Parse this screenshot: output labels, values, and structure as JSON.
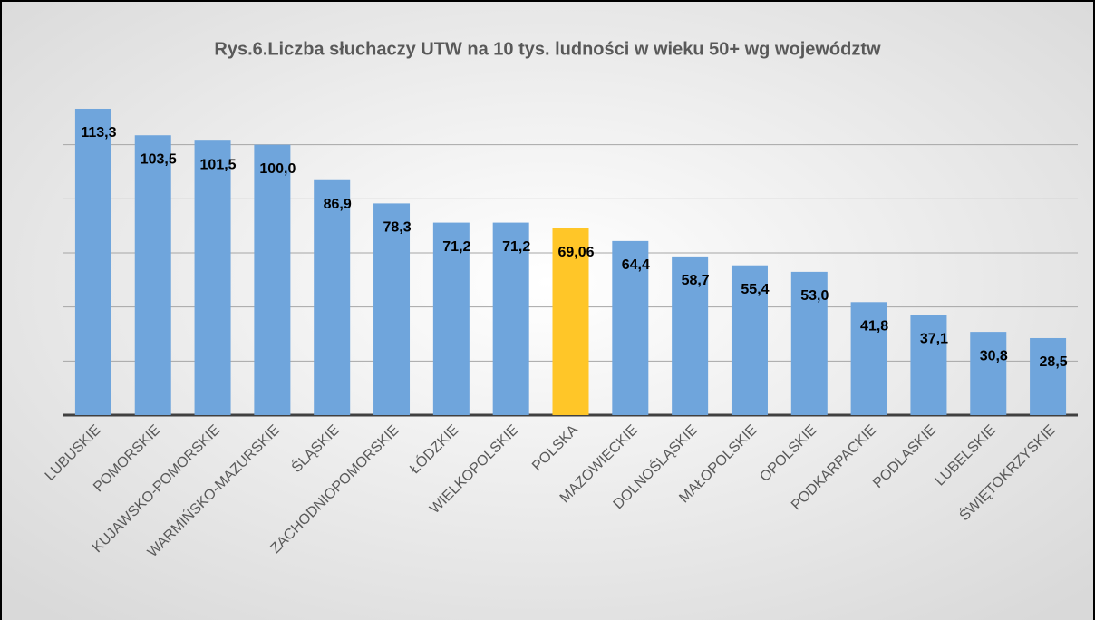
{
  "chart_data": {
    "type": "bar",
    "title": "Rys.6.Liczba słuchaczy UTW na 10 tys. ludności w wieku 50+ wg województw",
    "categories": [
      "LUBUSKIE",
      "POMORSKIE",
      "KUJAWSKO-POMORSKIE",
      "WARMIŃSKO-MAZURSKIE",
      "ŚLĄSKIE",
      "ZACHODNIOPOMORSKIE",
      "ŁÓDZKIE",
      "WIELKOPOLSKIE",
      "POLSKA",
      "MAZOWIECKIE",
      "DOLNOŚLĄSKIE",
      "MAŁOPOLSKIE",
      "OPOLSKIE",
      "PODKARPACKIE",
      "PODLASKIE",
      "LUBELSKIE",
      "ŚWIĘTOKRZYSKIE"
    ],
    "values": [
      113.3,
      103.5,
      101.5,
      100.0,
      86.9,
      78.3,
      71.2,
      71.2,
      69.06,
      64.4,
      58.7,
      55.4,
      53.0,
      41.8,
      37.1,
      30.8,
      28.5
    ],
    "value_labels": [
      "113,3",
      "103,5",
      "101,5",
      "100,0",
      "86,9",
      "78,3",
      "71,2",
      "71,2",
      "69,06",
      "64,4",
      "58,7",
      "55,4",
      "53,0",
      "41,8",
      "37,1",
      "30,8",
      "28,5"
    ],
    "colors": [
      "#6fa5dc",
      "#6fa5dc",
      "#6fa5dc",
      "#6fa5dc",
      "#6fa5dc",
      "#6fa5dc",
      "#6fa5dc",
      "#6fa5dc",
      "#ffc628",
      "#6fa5dc",
      "#6fa5dc",
      "#6fa5dc",
      "#6fa5dc",
      "#6fa5dc",
      "#6fa5dc",
      "#6fa5dc",
      "#6fa5dc"
    ],
    "ylim": [
      0,
      120
    ],
    "yticks": [
      0,
      20,
      40,
      60,
      80,
      100
    ],
    "grid": true
  }
}
